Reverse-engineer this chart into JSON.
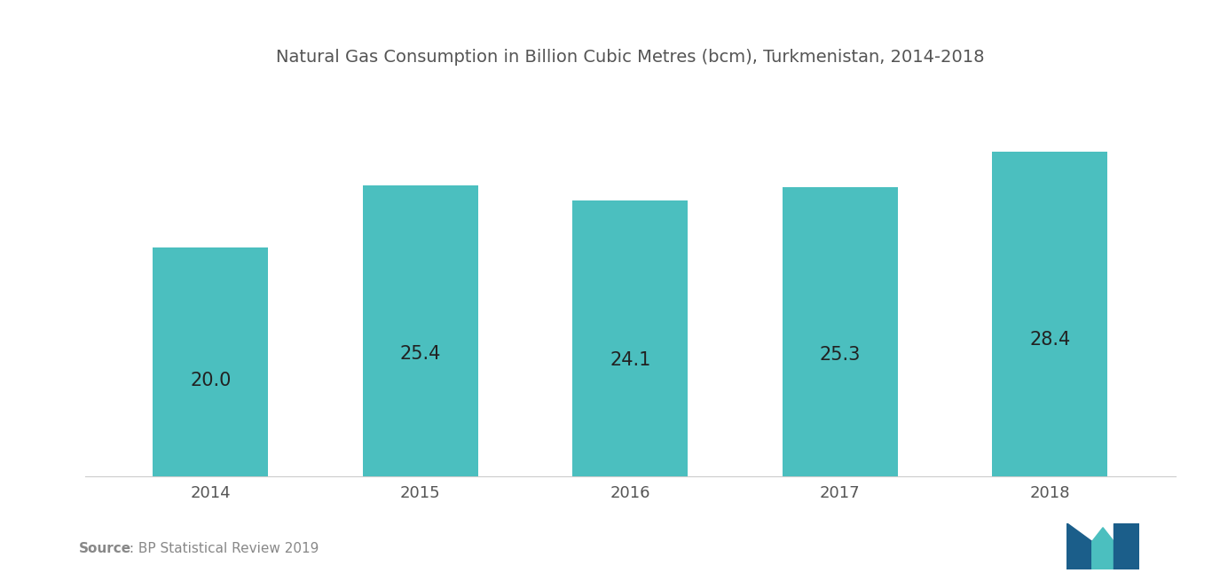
{
  "title": "Natural Gas Consumption in Billion Cubic Metres (bcm), Turkmenistan, 2014-2018",
  "categories": [
    "2014",
    "2015",
    "2016",
    "2017",
    "2018"
  ],
  "values": [
    20.0,
    25.4,
    24.1,
    25.3,
    28.4
  ],
  "bar_color": "#4BBFBF",
  "bar_width": 0.55,
  "label_fontsize": 15,
  "title_fontsize": 14,
  "tick_fontsize": 13,
  "source_bold": "Source",
  "source_rest": " : BP Statistical Review 2019",
  "background_color": "#ffffff",
  "ylim": [
    0,
    34
  ],
  "value_label_color": "#222222",
  "title_color": "#555555",
  "tick_color": "#555555",
  "source_color": "#888888",
  "spine_color": "#cccccc"
}
